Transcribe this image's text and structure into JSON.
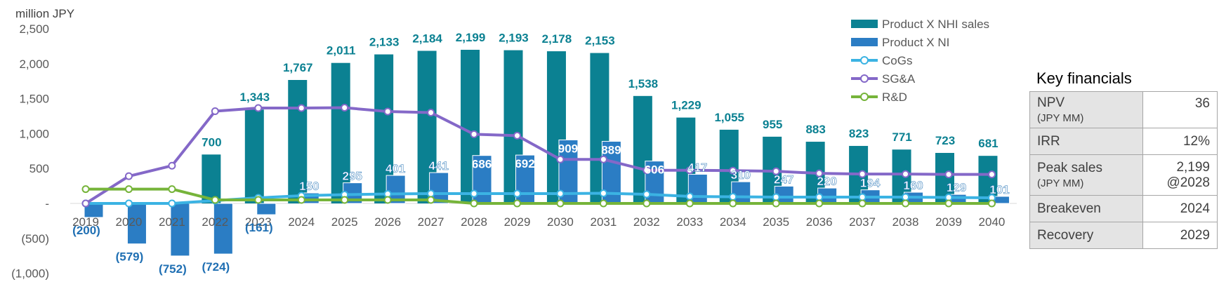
{
  "chart_data": {
    "type": "bar",
    "y_unit_label": "million JPY",
    "categories": [
      "2019",
      "2020",
      "2021",
      "2022",
      "2023",
      "2024",
      "2025",
      "2026",
      "2027",
      "2028",
      "2029",
      "2030",
      "2031",
      "2032",
      "2033",
      "2034",
      "2035",
      "2036",
      "2037",
      "2038",
      "2039",
      "2040"
    ],
    "ylim": [
      -1000,
      2500
    ],
    "yticks": [
      2500,
      2000,
      1500,
      1000,
      500,
      0,
      -500,
      -1000
    ],
    "ytick_labels": [
      "2,500",
      "2,000",
      "1,500",
      "1,000",
      "500",
      "-",
      "(500)",
      "(1,000)"
    ],
    "bar_series": [
      {
        "name": "Product X NHI sales",
        "color": "#0b8192",
        "values": [
          0,
          0,
          0,
          700,
          1343,
          1767,
          2011,
          2133,
          2184,
          2199,
          2193,
          2178,
          2153,
          1538,
          1229,
          1055,
          955,
          883,
          823,
          771,
          723,
          681
        ],
        "labels": [
          "",
          "",
          "",
          "700",
          "1,343",
          "1,767",
          "2,011",
          "2,133",
          "2,184",
          "2,199",
          "2,193",
          "2,178",
          "2,153",
          "1,538",
          "1,229",
          "1,055",
          "955",
          "883",
          "823",
          "771",
          "723",
          "681"
        ]
      },
      {
        "name": "Product X NI",
        "color": "#2b7dc4",
        "values": [
          -200,
          -579,
          -752,
          -724,
          -161,
          150,
          295,
          401,
          441,
          686,
          692,
          909,
          889,
          606,
          417,
          310,
          247,
          220,
          194,
          160,
          129,
          101
        ],
        "labels": [
          "(200)",
          "(579)",
          "(752)",
          "(724)",
          "(161)",
          "150",
          "295",
          "401",
          "441",
          "686",
          "692",
          "909",
          "889",
          "606",
          "417",
          "310",
          "247",
          "220",
          "194",
          "160",
          "129",
          "101"
        ]
      }
    ],
    "line_series": [
      {
        "name": "CoGs",
        "color": "#3bb3e3",
        "values": [
          0,
          0,
          0,
          40,
          80,
          110,
          125,
          135,
          140,
          140,
          140,
          140,
          145,
          130,
          100,
          95,
          90,
          90,
          90,
          90,
          85,
          80
        ]
      },
      {
        "name": "SG&A",
        "color": "#8468c8",
        "values": [
          0,
          390,
          540,
          1320,
          1365,
          1365,
          1370,
          1315,
          1300,
          990,
          970,
          630,
          630,
          475,
          475,
          470,
          460,
          430,
          420,
          420,
          415,
          415
        ]
      },
      {
        "name": "R&D",
        "color": "#76b43a",
        "values": [
          205,
          205,
          205,
          50,
          50,
          50,
          50,
          50,
          50,
          0,
          0,
          0,
          0,
          0,
          0,
          0,
          0,
          0,
          0,
          0,
          0,
          0
        ]
      }
    ],
    "legend_position": "top-right",
    "grid": false
  },
  "key_financials": {
    "title": "Key financials",
    "rows": [
      {
        "label": "NPV",
        "sublabel": "(JPY MM)",
        "value": "36"
      },
      {
        "label": "IRR",
        "sublabel": "",
        "value": "12%"
      },
      {
        "label": "Peak sales",
        "sublabel": "(JPY MM)",
        "value": "2,199",
        "value2": "@2028"
      },
      {
        "label": "Breakeven",
        "sublabel": "",
        "value": "2024"
      },
      {
        "label": "Recovery",
        "sublabel": "",
        "value": "2029"
      }
    ]
  }
}
